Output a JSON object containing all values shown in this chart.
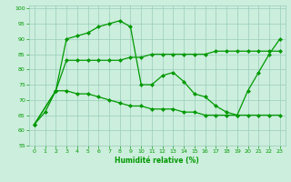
{
  "xlabel": "Humidité relative (%)",
  "background_color": "#cceedd",
  "grid_color": "#99ccbb",
  "line_color": "#009900",
  "xlim": [
    -0.5,
    23.5
  ],
  "ylim": [
    55,
    101
  ],
  "xticks": [
    0,
    1,
    2,
    3,
    4,
    5,
    6,
    7,
    8,
    9,
    10,
    11,
    12,
    13,
    14,
    15,
    16,
    17,
    18,
    19,
    20,
    21,
    22,
    23
  ],
  "yticks": [
    55,
    60,
    65,
    70,
    75,
    80,
    85,
    90,
    95,
    100
  ],
  "line1_x": [
    0,
    1,
    2,
    3,
    4,
    5,
    6,
    7,
    8,
    9,
    10,
    11,
    12,
    13,
    14,
    15,
    16,
    17,
    18,
    19,
    20,
    21,
    22,
    23
  ],
  "line1_y": [
    62,
    66,
    73,
    90,
    91,
    92,
    94,
    95,
    96,
    94,
    75,
    75,
    78,
    79,
    76,
    72,
    71,
    68,
    66,
    65,
    73,
    79,
    85,
    90
  ],
  "line2_x": [
    0,
    2,
    3,
    4,
    5,
    6,
    7,
    8,
    9,
    10,
    11,
    12,
    13,
    14,
    15,
    16,
    17,
    18,
    19,
    20,
    21,
    22,
    23
  ],
  "line2_y": [
    62,
    73,
    83,
    83,
    83,
    83,
    83,
    83,
    84,
    84,
    85,
    85,
    85,
    85,
    85,
    85,
    86,
    86,
    86,
    86,
    86,
    86,
    86
  ],
  "line3_x": [
    0,
    2,
    3,
    4,
    5,
    6,
    7,
    8,
    9,
    10,
    11,
    12,
    13,
    14,
    15,
    16,
    17,
    18,
    19,
    20,
    21,
    22,
    23
  ],
  "line3_y": [
    62,
    73,
    73,
    72,
    72,
    71,
    70,
    69,
    68,
    68,
    67,
    67,
    67,
    66,
    66,
    65,
    65,
    65,
    65,
    65,
    65,
    65,
    65
  ]
}
